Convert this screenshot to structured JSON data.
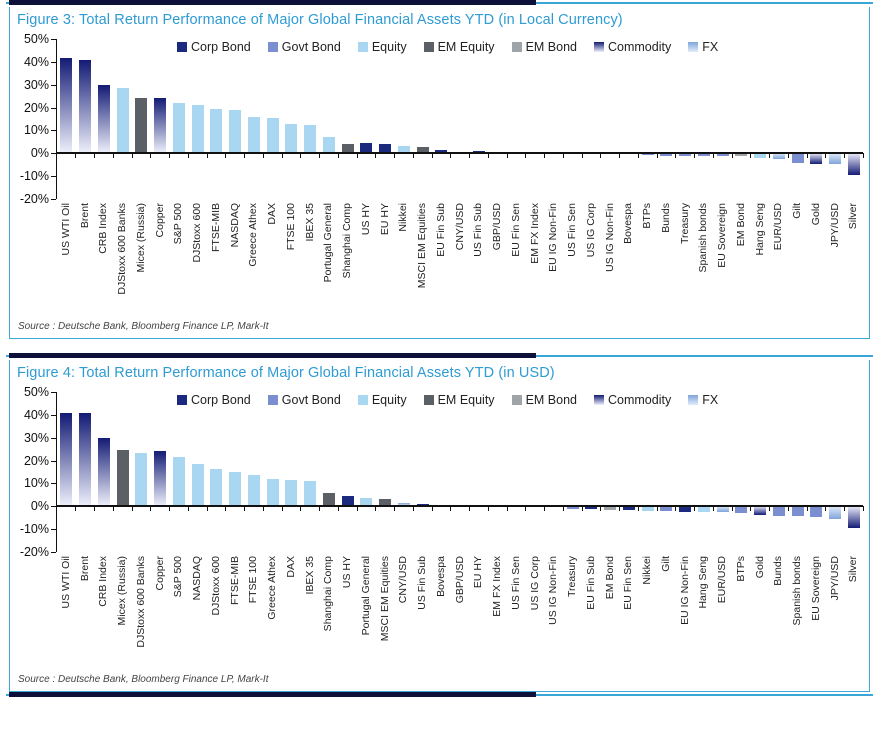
{
  "palette": {
    "Corp Bond": {
      "type": "solid",
      "color": "#1b2a7e"
    },
    "Govt Bond": {
      "type": "solid",
      "color": "#7b8fd0"
    },
    "Equity": {
      "type": "solid",
      "color": "#a9d6f0"
    },
    "EM Equity": {
      "type": "solid",
      "color": "#5b6067"
    },
    "EM Bond": {
      "type": "solid",
      "color": "#9fa4a9"
    },
    "Commodity": {
      "type": "gradient",
      "from": "#131b74",
      "to": "#eef0fb"
    },
    "FX": {
      "type": "gradient",
      "from": "#7fa4da",
      "to": "#e2edfa"
    }
  },
  "chart_data": [
    {
      "type": "bar",
      "title": "Figure 3: Total Return Performance of Major Global Financial Assets YTD (in Local Currency)",
      "source": "Source : Deutsche Bank, Bloomberg Finance LP, Mark-It",
      "ylim": [
        -20,
        50
      ],
      "yticks": [
        "50%",
        "40%",
        "30%",
        "20%",
        "10%",
        "0%",
        "-10%",
        "-20%"
      ],
      "grid": false,
      "legend_position": "top",
      "legend": [
        "Corp Bond",
        "Govt Bond",
        "Equity",
        "EM Equity",
        "EM Bond",
        "Commodity",
        "FX"
      ],
      "ylabel": "",
      "xlabel": "",
      "points": [
        {
          "label": "US WTI Oil",
          "value": 41.5,
          "category": "Commodity"
        },
        {
          "label": "Brent",
          "value": 41,
          "category": "Commodity"
        },
        {
          "label": "CRB Index",
          "value": 30,
          "category": "Commodity"
        },
        {
          "label": "DJStoxx 600 Banks",
          "value": 28.5,
          "category": "Equity"
        },
        {
          "label": "Micex (Russia)",
          "value": 24,
          "category": "EM Equity"
        },
        {
          "label": "Copper",
          "value": 24,
          "category": "Commodity"
        },
        {
          "label": "S&P 500",
          "value": 22,
          "category": "Equity"
        },
        {
          "label": "DJStoxx 600",
          "value": 21,
          "category": "Equity"
        },
        {
          "label": "FTSE-MIB",
          "value": 19.5,
          "category": "Equity"
        },
        {
          "label": "NASDAQ",
          "value": 19,
          "category": "Equity"
        },
        {
          "label": "Greece Athex",
          "value": 16,
          "category": "Equity"
        },
        {
          "label": "DAX",
          "value": 15.5,
          "category": "Equity"
        },
        {
          "label": "FTSE 100",
          "value": 13,
          "category": "Equity"
        },
        {
          "label": "IBEX 35",
          "value": 12.5,
          "category": "Equity"
        },
        {
          "label": "Portugal General",
          "value": 7,
          "category": "Equity"
        },
        {
          "label": "Shanghai Comp",
          "value": 3.9,
          "category": "EM Equity"
        },
        {
          "label": "US HY",
          "value": 4.3,
          "category": "Corp Bond"
        },
        {
          "label": "EU HY",
          "value": 4,
          "category": "Corp Bond"
        },
        {
          "label": "Nikkei",
          "value": 3,
          "category": "Equity"
        },
        {
          "label": "MSCI EM Equities",
          "value": 2.9,
          "category": "EM Equity"
        },
        {
          "label": "EU Fin Sub",
          "value": 1.6,
          "category": "Corp Bond"
        },
        {
          "label": "CNY/USD",
          "value": 0.3,
          "category": "FX"
        },
        {
          "label": "US Fin Sub",
          "value": 1,
          "category": "Corp Bond"
        },
        {
          "label": "GBP/USD",
          "value": 0.7,
          "category": "FX"
        },
        {
          "label": "EU Fin Sen",
          "value": 0.4,
          "category": "Corp Bond"
        },
        {
          "label": "EM FX Index",
          "value": 0.2,
          "category": "FX"
        },
        {
          "label": "EU IG Non-Fin",
          "value": 0.4,
          "category": "Corp Bond"
        },
        {
          "label": "US Fin Sen",
          "value": 0.3,
          "category": "Corp Bond"
        },
        {
          "label": "US IG Corp",
          "value": 0.3,
          "category": "Corp Bond"
        },
        {
          "label": "US IG Non-Fin",
          "value": 0.3,
          "category": "Corp Bond"
        },
        {
          "label": "Bovespa",
          "value": -0.3,
          "category": "EM Equity"
        },
        {
          "label": "BTPs",
          "value": -0.8,
          "category": "Govt Bond"
        },
        {
          "label": "Bunds",
          "value": -1.1,
          "category": "Govt Bond"
        },
        {
          "label": "Treasury",
          "value": -1.2,
          "category": "Govt Bond"
        },
        {
          "label": "Spanish bonds",
          "value": -1.2,
          "category": "Govt Bond"
        },
        {
          "label": "EU Sovereign",
          "value": -1.3,
          "category": "Govt Bond"
        },
        {
          "label": "EM Bond",
          "value": -1.4,
          "category": "EM Bond"
        },
        {
          "label": "Hang Seng",
          "value": -2,
          "category": "Equity"
        },
        {
          "label": "EUR/USD",
          "value": -2.6,
          "category": "FX"
        },
        {
          "label": "Gilt",
          "value": -4.4,
          "category": "Govt Bond"
        },
        {
          "label": "Gold",
          "value": -4.6,
          "category": "Commodity"
        },
        {
          "label": "JPY/USD",
          "value": -4.8,
          "category": "FX"
        },
        {
          "label": "Silver",
          "value": -9.5,
          "category": "Commodity"
        }
      ]
    },
    {
      "type": "bar",
      "title": "Figure 4: Total Return Performance of Major Global Financial Assets YTD (in USD)",
      "source": "Source : Deutsche Bank, Bloomberg Finance LP, Mark-It",
      "ylim": [
        -20,
        50
      ],
      "yticks": [
        "50%",
        "40%",
        "30%",
        "20%",
        "10%",
        "0%",
        "-10%",
        "-20%"
      ],
      "grid": false,
      "legend_position": "top",
      "legend": [
        "Corp Bond",
        "Govt Bond",
        "Equity",
        "EM Equity",
        "EM Bond",
        "Commodity",
        "FX"
      ],
      "ylabel": "",
      "xlabel": "",
      "points": [
        {
          "label": "US WTI Oil",
          "value": 41,
          "category": "Commodity"
        },
        {
          "label": "Brent",
          "value": 41,
          "category": "Commodity"
        },
        {
          "label": "CRB Index",
          "value": 30,
          "category": "Commodity"
        },
        {
          "label": "Micex (Russia)",
          "value": 24.5,
          "category": "EM Equity"
        },
        {
          "label": "DJStoxx 600 Banks",
          "value": 23.5,
          "category": "Equity"
        },
        {
          "label": "Copper",
          "value": 24,
          "category": "Commodity"
        },
        {
          "label": "S&P 500",
          "value": 21.5,
          "category": "Equity"
        },
        {
          "label": "NASDAQ",
          "value": 18.5,
          "category": "Equity"
        },
        {
          "label": "DJStoxx 600",
          "value": 16.5,
          "category": "Equity"
        },
        {
          "label": "FTSE-MIB",
          "value": 15,
          "category": "Equity"
        },
        {
          "label": "FTSE 100",
          "value": 13.5,
          "category": "Equity"
        },
        {
          "label": "Greece Athex",
          "value": 12,
          "category": "Equity"
        },
        {
          "label": "DAX",
          "value": 11.5,
          "category": "Equity"
        },
        {
          "label": "IBEX 35",
          "value": 11,
          "category": "Equity"
        },
        {
          "label": "Shanghai Comp",
          "value": 6,
          "category": "EM Equity"
        },
        {
          "label": "US HY",
          "value": 4.3,
          "category": "Corp Bond"
        },
        {
          "label": "Portugal General",
          "value": 3.8,
          "category": "Equity"
        },
        {
          "label": "MSCI EM Equities",
          "value": 3.3,
          "category": "EM Equity"
        },
        {
          "label": "CNY/USD",
          "value": 1.4,
          "category": "FX"
        },
        {
          "label": "US Fin Sub",
          "value": 1.1,
          "category": "Corp Bond"
        },
        {
          "label": "Bovespa",
          "value": 0.5,
          "category": "EM Equity"
        },
        {
          "label": "GBP/USD",
          "value": 0.4,
          "category": "FX"
        },
        {
          "label": "EU HY",
          "value": 0.4,
          "category": "Corp Bond"
        },
        {
          "label": "EM FX Index",
          "value": 0.2,
          "category": "FX"
        },
        {
          "label": "US Fin Sen",
          "value": 0.2,
          "category": "Corp Bond"
        },
        {
          "label": "US IG Corp",
          "value": 0.2,
          "category": "Corp Bond"
        },
        {
          "label": "US IG Non-Fin",
          "value": 0.2,
          "category": "Corp Bond"
        },
        {
          "label": "Treasury",
          "value": -1,
          "category": "Govt Bond"
        },
        {
          "label": "EU Fin Sub",
          "value": -1.3,
          "category": "Corp Bond"
        },
        {
          "label": "EM Bond",
          "value": -1.5,
          "category": "EM Bond"
        },
        {
          "label": "EU Fin Sen",
          "value": -1.8,
          "category": "Corp Bond"
        },
        {
          "label": "Nikkei",
          "value": -1.9,
          "category": "Equity"
        },
        {
          "label": "Gilt",
          "value": -2.1,
          "category": "Govt Bond"
        },
        {
          "label": "EU IG Non-Fin",
          "value": -2.3,
          "category": "Corp Bond"
        },
        {
          "label": "Hang Seng",
          "value": -2.4,
          "category": "Equity"
        },
        {
          "label": "EUR/USD",
          "value": -2.6,
          "category": "FX"
        },
        {
          "label": "BTPs",
          "value": -3.1,
          "category": "Govt Bond"
        },
        {
          "label": "Gold",
          "value": -3.8,
          "category": "Commodity"
        },
        {
          "label": "Bunds",
          "value": -4.2,
          "category": "Govt Bond"
        },
        {
          "label": "Spanish bonds",
          "value": -4.3,
          "category": "Govt Bond"
        },
        {
          "label": "EU Sovereign",
          "value": -4.5,
          "category": "Govt Bond"
        },
        {
          "label": "JPY/USD",
          "value": -5.5,
          "category": "FX"
        },
        {
          "label": "Silver",
          "value": -9.4,
          "category": "Commodity"
        }
      ]
    }
  ]
}
